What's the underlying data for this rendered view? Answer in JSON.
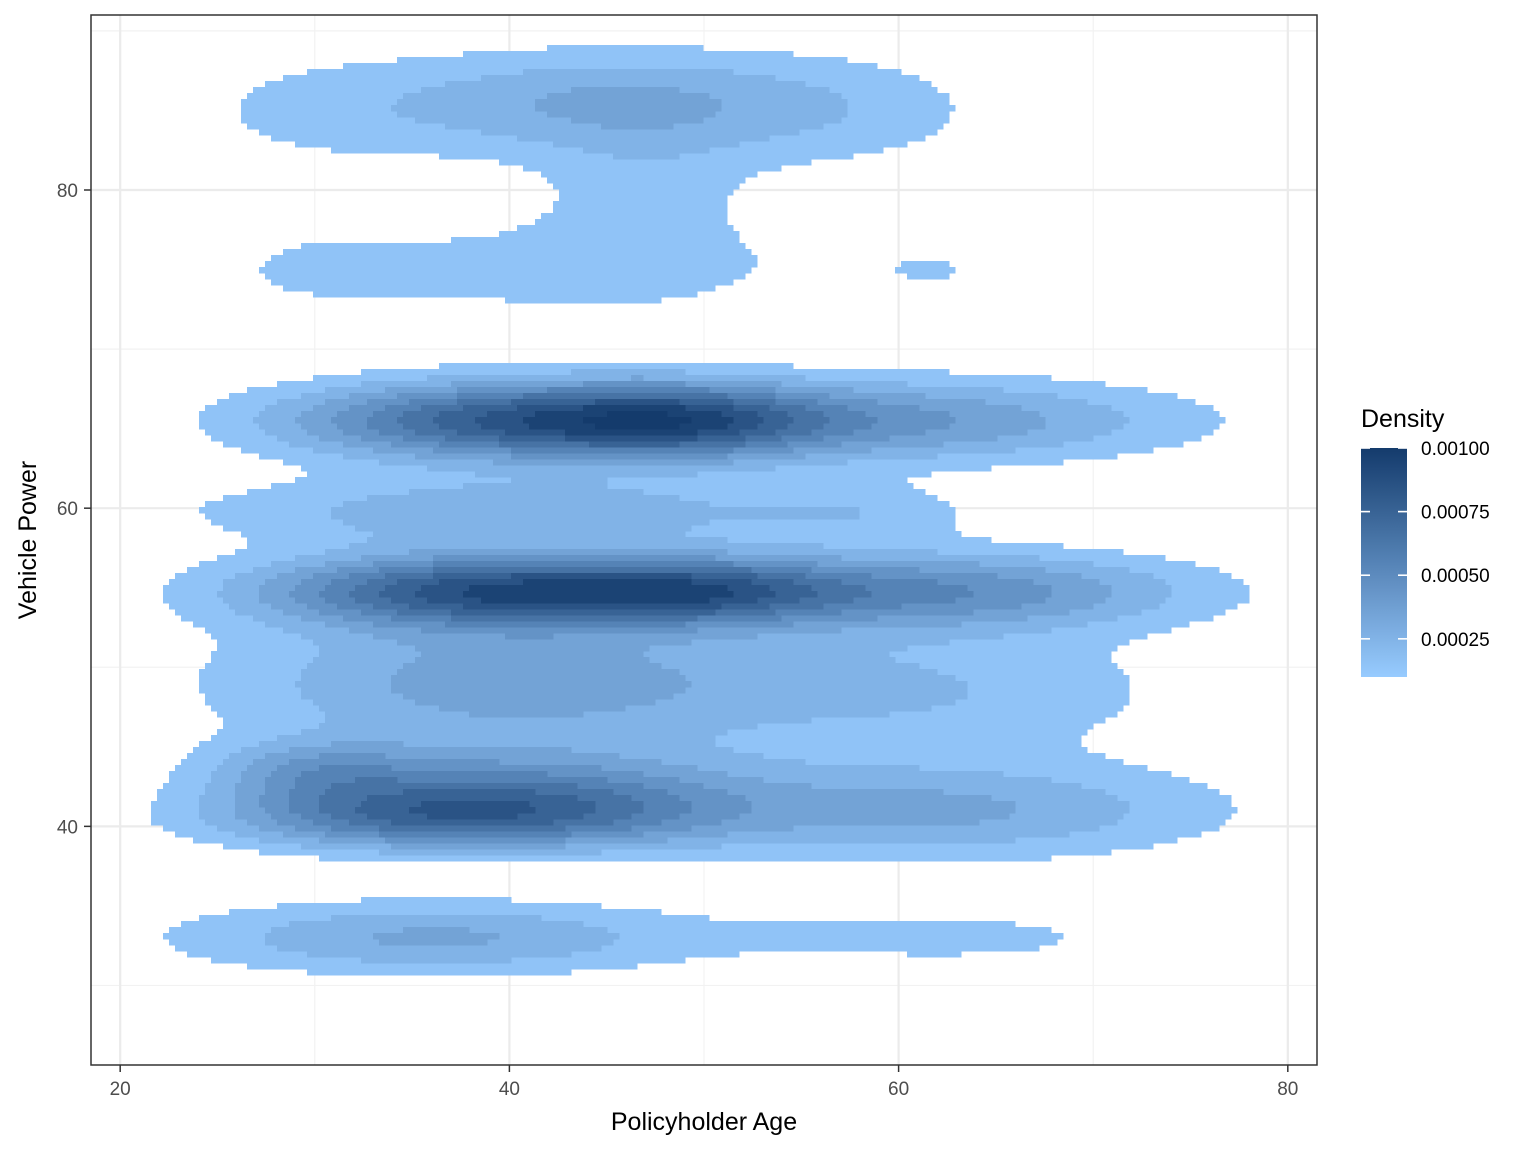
{
  "chart_data": {
    "type": "heatmap",
    "subtype": "filled-density-contour",
    "title": "",
    "xlabel": "Policyholder Age",
    "ylabel": "Vehicle Power",
    "xlim": [
      18.5,
      81.5
    ],
    "ylim": [
      25,
      91
    ],
    "x_ticks": [
      20,
      40,
      60,
      80
    ],
    "y_ticks": [
      40,
      60,
      80
    ],
    "x_tick_labels": [
      "20",
      "40",
      "60",
      "80"
    ],
    "y_tick_labels": [
      "40",
      "60",
      "80"
    ],
    "grid": true,
    "legend": {
      "title": "Density",
      "position": "right",
      "range": [
        0.0001,
        0.001
      ],
      "breaks": [
        0.00025,
        0.0005,
        0.00075,
        0.001
      ],
      "labels": [
        "0.00025",
        "0.00050",
        "0.00075",
        "0.00100"
      ],
      "color_low": "#97cbff",
      "color_high": "#143b6c"
    },
    "density_levels": [
      0.0001,
      0.0002,
      0.0003,
      0.0004,
      0.0005,
      0.0006,
      0.0007,
      0.0008,
      0.0009,
      0.001
    ],
    "components": [
      {
        "x": 31,
        "y": 85,
        "sx": 6,
        "sy": 2.6,
        "w": 0.00013
      },
      {
        "x": 45,
        "y": 85.5,
        "sx": 7,
        "sy": 2.3,
        "w": 0.0003
      },
      {
        "x": 57,
        "y": 85,
        "sx": 6,
        "sy": 2.6,
        "w": 0.00014
      },
      {
        "x": 47,
        "y": 80,
        "sx": 4,
        "sy": 2.6,
        "w": 0.00012
      },
      {
        "x": 31,
        "y": 75,
        "sx": 6,
        "sy": 2.4,
        "w": 0.00012
      },
      {
        "x": 45,
        "y": 75,
        "sx": 6,
        "sy": 2.4,
        "w": 0.00014
      },
      {
        "x": 62,
        "y": 75,
        "sx": 6,
        "sy": 2.4,
        "w": 0.0001
      },
      {
        "x": 40,
        "y": 65.5,
        "sx": 8,
        "sy": 1.7,
        "w": 0.00075
      },
      {
        "x": 49,
        "y": 65.5,
        "sx": 5,
        "sy": 1.6,
        "w": 0.0004
      },
      {
        "x": 60,
        "y": 65.5,
        "sx": 10,
        "sy": 1.8,
        "w": 0.0004
      },
      {
        "x": 40,
        "y": 59.8,
        "sx": 11,
        "sy": 1.5,
        "w": 0.00028
      },
      {
        "x": 58,
        "y": 59.8,
        "sx": 4,
        "sy": 1.2,
        "w": 0.00012
      },
      {
        "x": 39,
        "y": 54.8,
        "sx": 8,
        "sy": 1.6,
        "w": 0.00085
      },
      {
        "x": 50,
        "y": 54.8,
        "sx": 5,
        "sy": 1.4,
        "w": 0.0004
      },
      {
        "x": 62,
        "y": 54.8,
        "sx": 9,
        "sy": 1.7,
        "w": 0.00048
      },
      {
        "x": 40,
        "y": 49,
        "sx": 10,
        "sy": 2.8,
        "w": 0.00036
      },
      {
        "x": 62,
        "y": 48.5,
        "sx": 9,
        "sy": 2.8,
        "w": 0.00018
      },
      {
        "x": 30,
        "y": 43.5,
        "sx": 3.8,
        "sy": 1.4,
        "w": 0.00028
      },
      {
        "x": 40,
        "y": 42.5,
        "sx": 8,
        "sy": 1.8,
        "w": 0.0004
      },
      {
        "x": 35,
        "y": 40.5,
        "sx": 7,
        "sy": 1.4,
        "w": 0.00052
      },
      {
        "x": 45,
        "y": 40.5,
        "sx": 6,
        "sy": 1.5,
        "w": 0.0002
      },
      {
        "x": 62,
        "y": 41,
        "sx": 10,
        "sy": 2.1,
        "w": 0.00032
      },
      {
        "x": 36,
        "y": 33,
        "sx": 9,
        "sy": 1.6,
        "w": 0.00032
      },
      {
        "x": 63,
        "y": 33,
        "sx": 9,
        "sy": 1.6,
        "w": 0.00012
      }
    ]
  }
}
